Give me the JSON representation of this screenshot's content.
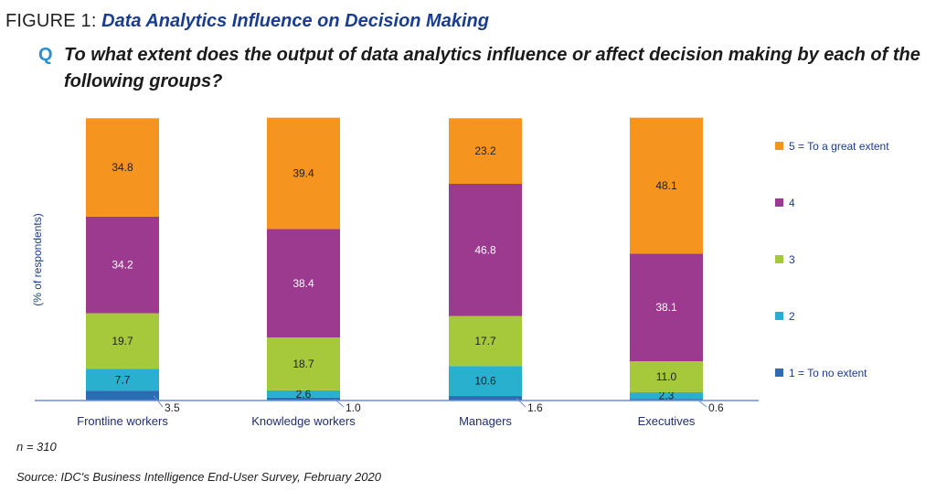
{
  "figure": {
    "label": "FIGURE 1:",
    "title": "Data Analytics Influence on Decision Making"
  },
  "question": {
    "marker": "Q",
    "text": "To what extent does the output of data analytics influence or affect decision making by each of the following groups?"
  },
  "footer": {
    "n": "n = 310",
    "source": "Source: IDC's Business Intelligence End-User Survey, February 2020"
  },
  "colors": {
    "s1": "#2a6db3",
    "s2": "#2ab0cf",
    "s3": "#a5c93a",
    "s4": "#9b3a8f",
    "s5": "#f5951f",
    "axis": "#6f8ed6",
    "category_text": "#1f2f6f",
    "value_text": "#1f1f1f",
    "legend_text": "#1a3d8f"
  },
  "chart_data": {
    "type": "bar",
    "stacked": true,
    "ylabel": "(% of respondents)",
    "ylim": [
      0,
      100
    ],
    "categories": [
      "Frontline workers",
      "Knowledge workers",
      "Managers",
      "Executives"
    ],
    "series": [
      {
        "name": "1 = To no extent",
        "values": [
          3.5,
          1.0,
          1.6,
          0.6
        ]
      },
      {
        "name": "2",
        "values": [
          7.7,
          2.6,
          10.6,
          2.3
        ]
      },
      {
        "name": "3",
        "values": [
          19.7,
          18.7,
          17.7,
          11.0
        ]
      },
      {
        "name": "4",
        "values": [
          34.2,
          38.4,
          46.8,
          38.1
        ]
      },
      {
        "name": "5 = To a great extent",
        "values": [
          34.8,
          39.4,
          23.2,
          48.1
        ]
      }
    ],
    "legend_order": [
      "5 = To a great extent",
      "4",
      "3",
      "2",
      "1 = To no extent"
    ],
    "value_labels": [
      [
        "3.5",
        "7.7",
        "19.7",
        "34.2",
        "34.8"
      ],
      [
        "1.0",
        "2.6",
        "18.7",
        "38.4",
        "39.4"
      ],
      [
        "1.6",
        "10.6",
        "17.7",
        "46.8",
        "23.2"
      ],
      [
        "0.6",
        "2.3",
        "11.0",
        "38.1",
        "48.1"
      ]
    ],
    "legend_position": "right",
    "grid": false
  }
}
